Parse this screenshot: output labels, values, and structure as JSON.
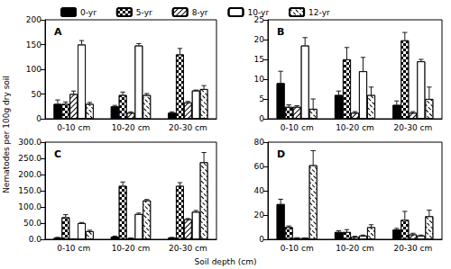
{
  "ylabel": "Nematodes per 100g dry soil",
  "xlabel": "Soil depth (cm)",
  "chart_data": [
    {
      "type": "bar",
      "title": "A",
      "categories": [
        "0-10 cm",
        "10-20 cm",
        "20-30 cm"
      ],
      "series": [
        {
          "name": "0-yr",
          "color": "#000000",
          "values": [
            30,
            25,
            12
          ],
          "errors": [
            8,
            2,
            2
          ]
        },
        {
          "name": "5-yr",
          "color": "#ffffff",
          "values": [
            30,
            48,
            130
          ],
          "errors": [
            4,
            6,
            12
          ]
        },
        {
          "name": "8-yr",
          "color": "#ffffff",
          "values": [
            50,
            12,
            33
          ],
          "errors": [
            6,
            2,
            2
          ]
        },
        {
          "name": "10-yr",
          "color": "#ffffff",
          "values": [
            150,
            148,
            57
          ],
          "errors": [
            8,
            4,
            1
          ]
        },
        {
          "name": "12-yr",
          "color": "#ffffff",
          "values": [
            30,
            48,
            60
          ],
          "errors": [
            3,
            3,
            7
          ]
        }
      ],
      "ylim": [
        0,
        200
      ],
      "yticks": [
        0,
        50,
        100,
        150,
        200
      ],
      "legend": "top"
    },
    {
      "type": "bar",
      "title": "B",
      "categories": [
        "0-10 cm",
        "10-20 cm",
        "20-30 cm"
      ],
      "series": [
        {
          "name": "0-yr",
          "color": "#000000",
          "values": [
            9,
            6,
            3.5
          ],
          "errors": [
            3,
            1,
            1
          ]
        },
        {
          "name": "5-yr",
          "color": "#ffffff",
          "values": [
            3,
            15,
            19.8
          ],
          "errors": [
            0.5,
            3,
            2
          ]
        },
        {
          "name": "8-yr",
          "color": "#ffffff",
          "values": [
            3,
            1.5,
            1.5
          ],
          "errors": [
            0.3,
            0.3,
            0.3
          ]
        },
        {
          "name": "10-yr",
          "color": "#ffffff",
          "values": [
            18.5,
            12,
            14.5
          ],
          "errors": [
            2,
            3.5,
            0.5
          ]
        },
        {
          "name": "12-yr",
          "color": "#ffffff",
          "values": [
            2.5,
            6,
            5
          ],
          "errors": [
            2.5,
            2,
            3
          ]
        }
      ],
      "ylim": [
        0,
        25
      ],
      "yticks": [
        0,
        5,
        10,
        15,
        20,
        25
      ]
    },
    {
      "type": "bar",
      "title": "C",
      "categories": [
        "0-10 cm",
        "10-20 cm",
        "20-30 cm"
      ],
      "series": [
        {
          "name": "0-yr",
          "color": "#000000",
          "values": [
            5,
            8,
            5
          ],
          "errors": [
            1,
            2,
            1
          ]
        },
        {
          "name": "5-yr",
          "color": "#ffffff",
          "values": [
            68,
            165,
            165
          ],
          "errors": [
            8,
            12,
            10
          ]
        },
        {
          "name": "8-yr",
          "color": "#ffffff",
          "values": [
            1,
            3,
            62
          ],
          "errors": [
            0.5,
            1,
            2
          ]
        },
        {
          "name": "10-yr",
          "color": "#ffffff",
          "values": [
            50,
            78,
            85
          ],
          "errors": [
            2,
            3,
            4
          ]
        },
        {
          "name": "12-yr",
          "color": "#ffffff",
          "values": [
            25,
            120,
            238
          ],
          "errors": [
            3,
            3,
            30
          ]
        }
      ],
      "ylim": [
        0,
        300
      ],
      "yticks": [
        {
          "value": 0,
          "label": "0.0"
        },
        {
          "value": 50,
          "label": "50.0"
        },
        {
          "value": 100,
          "label": "100.0"
        },
        {
          "value": 150,
          "label": "150.0"
        },
        {
          "value": 200,
          "label": "200.0"
        },
        {
          "value": 250,
          "label": "250.0"
        },
        {
          "value": 300,
          "label": "300.0"
        }
      ]
    },
    {
      "type": "bar",
      "title": "D",
      "categories": [
        "0-10 cm",
        "10-20 cm",
        "20-30 cm"
      ],
      "series": [
        {
          "name": "0-yr",
          "color": "#000000",
          "values": [
            29,
            6,
            8
          ],
          "errors": [
            4,
            1,
            1
          ]
        },
        {
          "name": "5-yr",
          "color": "#ffffff",
          "values": [
            10,
            6,
            16
          ],
          "errors": [
            1,
            2,
            7
          ]
        },
        {
          "name": "8-yr",
          "color": "#ffffff",
          "values": [
            1,
            2,
            4
          ],
          "errors": [
            0.3,
            0.5,
            1
          ]
        },
        {
          "name": "10-yr",
          "color": "#ffffff",
          "values": [
            1,
            3,
            3
          ],
          "errors": [
            0.2,
            0.5,
            0.5
          ]
        },
        {
          "name": "12-yr",
          "color": "#ffffff",
          "values": [
            61,
            10,
            19
          ],
          "errors": [
            12,
            2,
            5
          ]
        }
      ],
      "ylim": [
        0,
        80
      ],
      "yticks": [
        0,
        20,
        40,
        60,
        80
      ]
    }
  ]
}
